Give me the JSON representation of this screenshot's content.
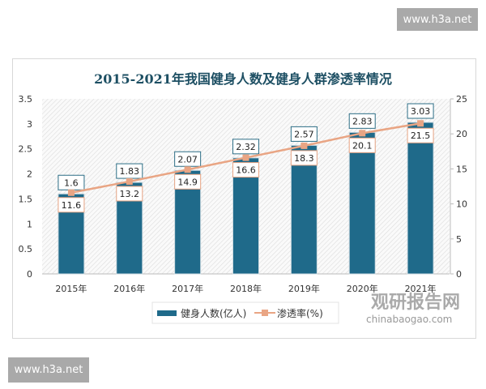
{
  "watermark_top": "www.h3a.net",
  "watermark_bottom": "www.h3a.net",
  "brand": {
    "name": "观研报告网",
    "url": "chinabaogao.com"
  },
  "chart_data": {
    "type": "bar+line",
    "title": "2015-2021年我国健身人数及健身人群渗透率情况",
    "categories": [
      "2015年",
      "2016年",
      "2017年",
      "2018年",
      "2019年",
      "2020年",
      "2021年"
    ],
    "series": [
      {
        "name": "健身人数(亿人)",
        "type": "bar",
        "axis": "left",
        "values": [
          1.6,
          1.83,
          2.07,
          2.32,
          2.57,
          2.83,
          3.03
        ],
        "labels": [
          "1.6",
          "1.83",
          "2.07",
          "2.32",
          "2.57",
          "2.83",
          "3.03"
        ],
        "color": "#1f6a8a"
      },
      {
        "name": "渗透率(%)",
        "type": "line",
        "axis": "right",
        "values": [
          11.6,
          13.2,
          14.9,
          16.6,
          18.3,
          20.1,
          21.5
        ],
        "labels": [
          "11.6",
          "13.2",
          "14.9",
          "16.6",
          "18.3",
          "20.1",
          "21.5"
        ],
        "color": "#e9a584"
      }
    ],
    "left_axis": {
      "ylim": [
        0,
        3.5
      ],
      "ticks": [
        "0",
        "0.5",
        "1",
        "1.5",
        "2",
        "2.5",
        "3",
        "3.5"
      ]
    },
    "right_axis": {
      "ylim": [
        0,
        25
      ],
      "ticks": [
        "0",
        "5",
        "10",
        "15",
        "20",
        "25"
      ]
    },
    "legend": "bottom",
    "grid": false
  }
}
